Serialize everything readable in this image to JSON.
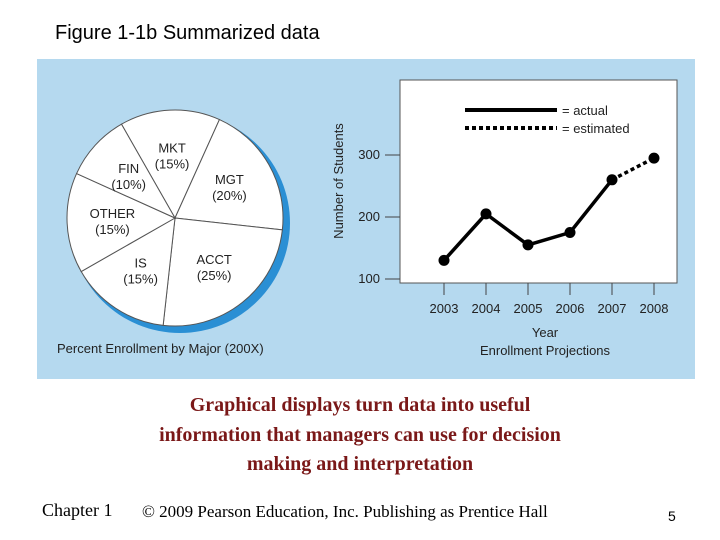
{
  "slide": {
    "title": "Figure 1-1b Summarized data",
    "description_lines": [
      "Graphical displays turn data into useful",
      "information that managers can use for decision",
      "making and interpretation"
    ],
    "footer": {
      "chapter": "Chapter 1",
      "copyright": "© 2009 Pearson Education, Inc. Publishing as Prentice Hall",
      "page": "5"
    }
  },
  "colors": {
    "panel_background": "#b5d9ef",
    "pie_shadow": "#2a8fd4",
    "description_text": "#7a1818"
  },
  "chart_data": [
    {
      "type": "pie",
      "caption": "Percent Enrollment by Major (200X)",
      "slices": [
        {
          "name": "MKT",
          "label": "(15%)",
          "value": 15
        },
        {
          "name": "MGT",
          "label": "(20%)",
          "value": 20
        },
        {
          "name": "ACCT",
          "label": "(25%)",
          "value": 25
        },
        {
          "name": "IS",
          "label": "(15%)",
          "value": 15
        },
        {
          "name": "OTHER",
          "label": "(15%)",
          "value": 15
        },
        {
          "name": "FIN",
          "label": "(10%)",
          "value": 10
        }
      ]
    },
    {
      "type": "line",
      "caption": "Enrollment Projections",
      "xlabel": "Year",
      "ylabel": "Number of Students",
      "categories": [
        "2003",
        "2004",
        "2005",
        "2006",
        "2007",
        "2008"
      ],
      "yticks": [
        100,
        200,
        300
      ],
      "ylim": [
        0,
        400
      ],
      "legend": [
        {
          "name": "= actual",
          "style": "solid"
        },
        {
          "name": "= estimated",
          "style": "dotted"
        }
      ],
      "actual_values": [
        130,
        205,
        155,
        175,
        260
      ],
      "estimated_values": [
        null,
        null,
        null,
        null,
        260,
        295
      ],
      "legend_position": "top-right"
    }
  ]
}
